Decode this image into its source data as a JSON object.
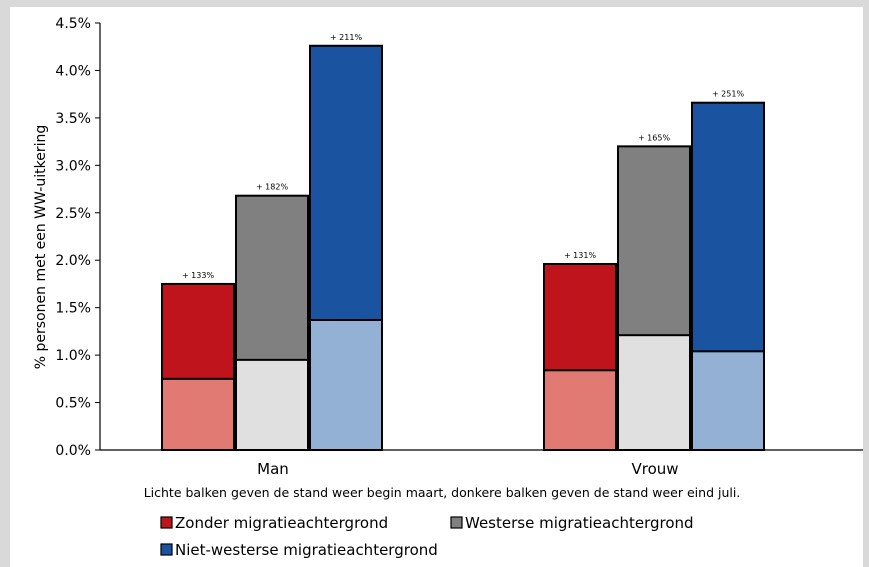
{
  "chart_data": {
    "type": "bar",
    "stacked": true,
    "categories": [
      "Man",
      "Vrouw"
    ],
    "ylabel": "% personen met een WW-uitkering",
    "ylim": [
      0,
      4.5
    ],
    "yticks": [
      "0.0%",
      "0.5%",
      "1.0%",
      "1.5%",
      "2.0%",
      "2.5%",
      "3.0%",
      "3.5%",
      "4.0%",
      "4.5%"
    ],
    "grid": false,
    "note": "Lichte balken geven de stand weer begin maart, donkere balken geven de stand weer eind juli.",
    "legend_position": "bottom-left",
    "series": [
      {
        "name": "Zonder migratieachtergrond",
        "color_dark": "#c0141c",
        "color_light": "#e07a72",
        "begin_maart": [
          0.75,
          0.84
        ],
        "eind_juli": [
          1.75,
          1.96
        ],
        "increase_labels": [
          "+ 133%",
          "+ 131%"
        ]
      },
      {
        "name": "Westerse migratieachtergrond",
        "color_dark": "#808080",
        "color_light": "#e0e0e0",
        "begin_maart": [
          0.95,
          1.21
        ],
        "eind_juli": [
          2.68,
          3.2
        ],
        "increase_labels": [
          "+ 182%",
          "+ 165%"
        ]
      },
      {
        "name": "Niet-westerse migratieachtergrond",
        "color_dark": "#1a54a0",
        "color_light": "#92b1d5",
        "begin_maart": [
          1.37,
          1.04
        ],
        "eind_juli": [
          4.26,
          3.66
        ],
        "increase_labels": [
          "+ 211%",
          "+ 251%"
        ]
      }
    ]
  }
}
